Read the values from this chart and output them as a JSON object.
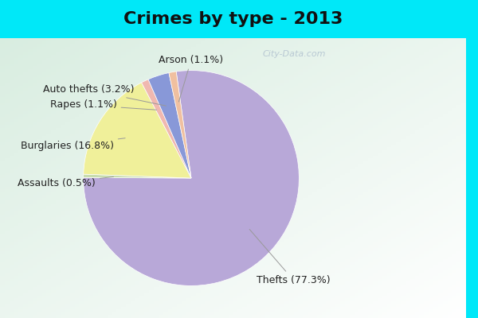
{
  "title": "Crimes by type - 2013",
  "labels": [
    "Thefts",
    "Burglaries",
    "Auto thefts",
    "Arson",
    "Rapes",
    "Assaults"
  ],
  "values": [
    77.3,
    16.8,
    3.2,
    1.1,
    1.1,
    0.5
  ],
  "colors": [
    "#b8a8d8",
    "#f0f09a",
    "#8898d8",
    "#f0b090",
    "#f8c8b8",
    "#c8e0b0"
  ],
  "bg_color_top": "#00e8f8",
  "bg_color_main_tl": "#c8e8d8",
  "bg_color_main_br": "#e8f4f0",
  "title_fontsize": 16,
  "label_fontsize": 9,
  "startangle": 90,
  "watermark": "City-Data.com"
}
